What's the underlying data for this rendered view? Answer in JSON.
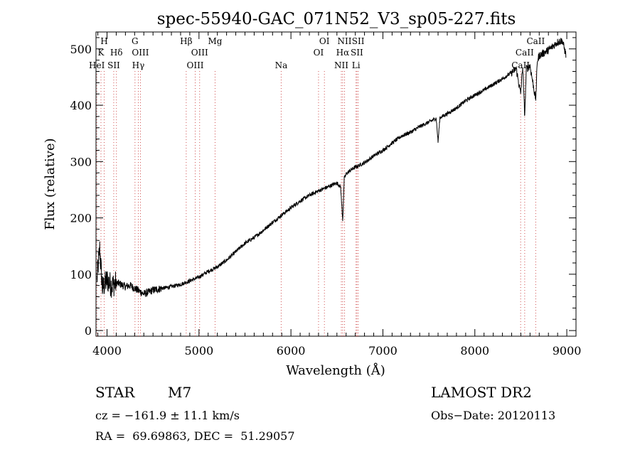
{
  "chart_data": {
    "type": "line",
    "title": "spec-55940-GAC_071N52_V3_sp05-227.fits",
    "xlabel": "Wavelength (Å)",
    "ylabel": "Flux (relative)",
    "xlim": [
      3880,
      9100
    ],
    "ylim": [
      -10,
      530
    ],
    "x_ticks": [
      4000,
      5000,
      6000,
      7000,
      8000,
      9000
    ],
    "x_tick_labels": [
      "4000",
      "5000",
      "6000",
      "7000",
      "8000",
      "9000"
    ],
    "y_ticks": [
      0,
      100,
      200,
      300,
      400,
      500
    ],
    "y_tick_labels": [
      "0",
      "100",
      "200",
      "300",
      "400",
      "500"
    ],
    "grid": false,
    "series": [
      {
        "x": [
          3890,
          3920,
          3950,
          4000,
          4050,
          4100,
          4150,
          4200,
          4250,
          4300,
          4350,
          4400,
          4450,
          4500,
          4600,
          4700,
          4800,
          4900,
          5000,
          5100,
          5200,
          5300,
          5400,
          5500,
          5600,
          5700,
          5800,
          5900,
          6000,
          6100,
          6200,
          6300,
          6400,
          6500,
          6540,
          6563,
          6580,
          6600,
          6650,
          6700,
          6800,
          6900,
          7000,
          7100,
          7200,
          7300,
          7400,
          7500,
          7580,
          7600,
          7620,
          7700,
          7800,
          7900,
          8000,
          8100,
          8200,
          8300,
          8400,
          8450,
          8498,
          8520,
          8542,
          8560,
          8600,
          8662,
          8680,
          8700,
          8750,
          8800,
          8850,
          8900,
          8950,
          8990
        ],
        "y": [
          90,
          145,
          75,
          90,
          80,
          85,
          82,
          78,
          80,
          75,
          70,
          65,
          68,
          72,
          75,
          78,
          82,
          88,
          95,
          105,
          113,
          125,
          140,
          155,
          165,
          178,
          192,
          205,
          218,
          230,
          240,
          248,
          255,
          262,
          255,
          195,
          270,
          278,
          285,
          290,
          298,
          310,
          320,
          333,
          345,
          352,
          362,
          370,
          377,
          335,
          378,
          385,
          395,
          408,
          418,
          427,
          437,
          447,
          458,
          465,
          420,
          470,
          380,
          465,
          470,
          410,
          480,
          488,
          493,
          498,
          505,
          512,
          515,
          490
        ]
      }
    ],
    "line_markers": [
      {
        "x": 3889,
        "label": "HeI",
        "row": 3
      },
      {
        "x": 3934,
        "label": "K",
        "row": 2
      },
      {
        "x": 3969,
        "label": "H",
        "row": 1
      },
      {
        "x": 4073,
        "label": "SII",
        "row": 3
      },
      {
        "x": 4102,
        "label": "Hδ",
        "row": 2
      },
      {
        "x": 4304,
        "label": "G",
        "row": 1
      },
      {
        "x": 4340,
        "label": "Hγ",
        "row": 3
      },
      {
        "x": 4363,
        "label": "OIII",
        "row": 2
      },
      {
        "x": 4861,
        "label": "Hβ",
        "row": 1
      },
      {
        "x": 4959,
        "label": "OIII",
        "row": 3
      },
      {
        "x": 5007,
        "label": "OIII",
        "row": 2
      },
      {
        "x": 5175,
        "label": "Mg",
        "row": 1
      },
      {
        "x": 5894,
        "label": "Na",
        "row": 3
      },
      {
        "x": 6300,
        "label": "OI",
        "row": 2
      },
      {
        "x": 6364,
        "label": "OI",
        "row": 1
      },
      {
        "x": 6548,
        "label": "NII",
        "row": 3
      },
      {
        "x": 6563,
        "label": "Hα",
        "row": 2
      },
      {
        "x": 6583,
        "label": "NII",
        "row": 1
      },
      {
        "x": 6708,
        "label": "Li",
        "row": 3
      },
      {
        "x": 6717,
        "label": "SII",
        "row": 2
      },
      {
        "x": 6731,
        "label": "SII",
        "row": 1
      },
      {
        "x": 8498,
        "label": "CaII",
        "row": 3
      },
      {
        "x": 8542,
        "label": "CaII",
        "row": 2
      },
      {
        "x": 8662,
        "label": "CaII",
        "row": 1
      }
    ]
  },
  "info": {
    "object_class": "STAR",
    "subclass": "M7",
    "survey": "LAMOST DR2",
    "redshift": "cz = −161.9 ± 11.1 km/s",
    "obs_date": "Obs−Date: 20120113",
    "coords": "RA =  69.69863, DEC =  51.29057"
  }
}
